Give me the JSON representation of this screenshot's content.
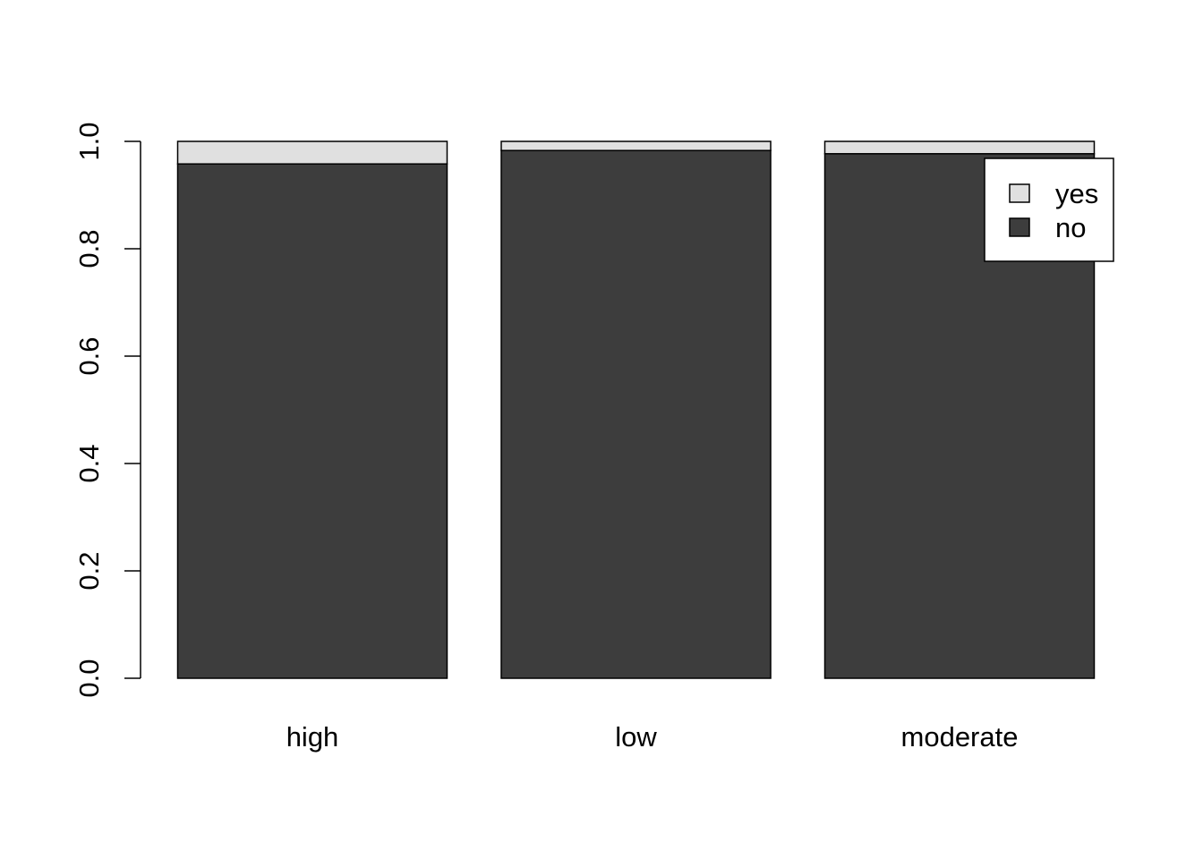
{
  "chart_data": {
    "type": "bar",
    "stacked": true,
    "categories": [
      "high",
      "low",
      "moderate"
    ],
    "series": [
      {
        "name": "no",
        "values": [
          0.958,
          0.983,
          0.977
        ],
        "color": "#3d3d3d"
      },
      {
        "name": "yes",
        "values": [
          0.042,
          0.017,
          0.023
        ],
        "color": "#e0e0e0"
      }
    ],
    "ylim": [
      0,
      1
    ],
    "yticks": [
      0,
      0.2,
      0.4,
      0.6,
      0.8,
      1
    ],
    "ytick_labels": [
      "0.0",
      "0.2",
      "0.4",
      "0.6",
      "0.8",
      "1.0"
    ],
    "title": "",
    "xlabel": "",
    "ylabel": "",
    "grid": false,
    "legend": {
      "position": "top-right",
      "entries": [
        {
          "label": "yes",
          "color": "#e0e0e0"
        },
        {
          "label": "no",
          "color": "#3d3d3d"
        }
      ]
    }
  }
}
